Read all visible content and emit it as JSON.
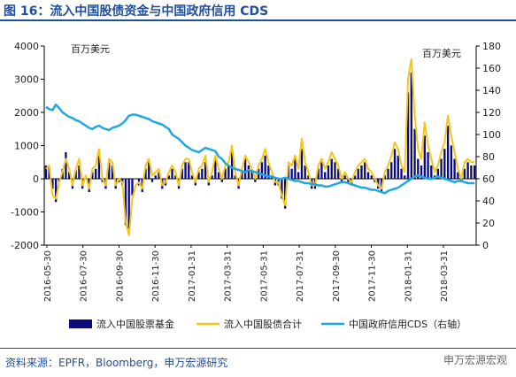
{
  "title": "图 16：流入中国股债资金与中国政府信用 CDS",
  "source": "资料来源：EPFR，Bloomberg，申万宏源研究",
  "watermark": "申万宏源宏观",
  "colors": {
    "accent": "#1f4e9c",
    "equity": "#0a0a7a",
    "bond": "#f5c518",
    "cds": "#1fa8e0",
    "axis": "#000000"
  },
  "chart_data": {
    "type": "bar",
    "left_unit_label": "百万美元",
    "right_unit_label": "百万美元",
    "y_left": {
      "min": -2000,
      "max": 4000,
      "ticks": [
        -2000,
        -1000,
        0,
        1000,
        2000,
        3000,
        4000
      ]
    },
    "y_right": {
      "min": 0,
      "max": 180,
      "ticks": [
        0,
        20,
        40,
        60,
        80,
        100,
        120,
        140,
        160,
        180
      ]
    },
    "x_tick_labels": [
      "2016-05-30",
      "2016-07-30",
      "2016-09-30",
      "2016-11-30",
      "2017-01-31",
      "2017-03-31",
      "2017-05-31",
      "2017-07-31",
      "2017-09-30",
      "2017-11-30",
      "2018-01-31",
      "2018-03-31"
    ],
    "legend": [
      "流入中国股票基金",
      "流入中国股债合计",
      "中国政府信用CDS（右轴）"
    ],
    "series": [
      {
        "name": "流入中国股票基金",
        "type": "bar",
        "axis": "left",
        "values": [
          400,
          350,
          -300,
          -700,
          -100,
          300,
          800,
          200,
          -300,
          250,
          400,
          -300,
          100,
          -400,
          200,
          300,
          700,
          -100,
          -300,
          500,
          400,
          -300,
          -100,
          -200,
          -1400,
          -1500,
          -500,
          0,
          -200,
          -400,
          300,
          500,
          -100,
          100,
          200,
          -300,
          -200,
          100,
          300,
          100,
          -300,
          300,
          500,
          500,
          100,
          -200,
          200,
          300,
          500,
          -200,
          100,
          600,
          200,
          -100,
          300,
          400,
          800,
          100,
          -300,
          200,
          600,
          400,
          200,
          -100,
          300,
          500,
          700,
          400,
          100,
          -200,
          -200,
          -600,
          -900,
          400,
          300,
          600,
          200,
          900,
          400,
          100,
          -300,
          -300,
          300,
          500,
          200,
          400,
          600,
          500,
          300,
          -100,
          100,
          -100,
          -200,
          100,
          300,
          400,
          500,
          200,
          100,
          -100,
          -300,
          -400,
          100,
          300,
          500,
          900,
          700,
          300,
          100,
          2600,
          3200,
          1500,
          600,
          400,
          1300,
          800,
          400,
          100,
          300,
          600,
          900,
          1600,
          1000,
          600,
          200,
          -100,
          300,
          500,
          400,
          400
        ]
      },
      {
        "name": "流入中国股债合计",
        "type": "line",
        "axis": "left",
        "values": [
          300,
          400,
          -500,
          -600,
          -100,
          200,
          600,
          300,
          -200,
          300,
          600,
          -200,
          100,
          -300,
          300,
          400,
          900,
          0,
          -200,
          600,
          500,
          -200,
          0,
          -100,
          -1300,
          -1700,
          -600,
          -200,
          -100,
          -300,
          400,
          600,
          100,
          200,
          300,
          -200,
          -100,
          200,
          400,
          200,
          -200,
          400,
          600,
          600,
          200,
          -100,
          300,
          400,
          700,
          -100,
          200,
          700,
          300,
          0,
          400,
          500,
          1000,
          200,
          -200,
          300,
          700,
          500,
          300,
          0,
          400,
          600,
          900,
          500,
          200,
          -100,
          -100,
          -500,
          -800,
          500,
          400,
          700,
          300,
          1200,
          500,
          200,
          -200,
          -200,
          400,
          600,
          300,
          500,
          800,
          600,
          400,
          0,
          200,
          0,
          -100,
          200,
          400,
          500,
          600,
          300,
          200,
          0,
          -200,
          -300,
          200,
          400,
          700,
          1100,
          900,
          400,
          200,
          3000,
          3600,
          1900,
          900,
          600,
          1700,
          1000,
          600,
          200,
          400,
          800,
          1100,
          1900,
          1300,
          800,
          300,
          0,
          500,
          600,
          500,
          500
        ]
      },
      {
        "name": "中国政府信用CDS（右轴）",
        "type": "line",
        "axis": "right",
        "values": [
          125,
          123,
          122,
          127,
          124,
          120,
          118,
          116,
          115,
          113,
          112,
          110,
          108,
          106,
          105,
          107,
          108,
          106,
          105,
          104,
          106,
          107,
          108,
          110,
          113,
          117,
          118,
          118,
          117,
          116,
          115,
          114,
          112,
          111,
          110,
          109,
          107,
          105,
          100,
          98,
          96,
          93,
          90,
          88,
          86,
          85,
          84,
          86,
          88,
          87,
          86,
          85,
          80,
          78,
          74,
          72,
          70,
          69,
          68,
          67,
          66,
          68,
          67,
          66,
          65,
          64,
          63,
          62,
          62,
          61,
          60,
          60,
          61,
          60,
          59,
          58,
          58,
          57,
          56,
          56,
          55,
          55,
          54,
          54,
          53,
          53,
          54,
          55,
          56,
          57,
          57,
          56,
          55,
          54,
          53,
          52,
          52,
          51,
          50,
          50,
          49,
          48,
          47,
          49,
          50,
          51,
          52,
          54,
          56,
          58,
          60,
          62,
          63,
          62,
          61,
          60,
          60,
          61,
          62,
          61,
          60,
          59,
          58,
          57,
          58,
          58,
          57,
          56,
          56,
          56
        ]
      }
    ]
  }
}
